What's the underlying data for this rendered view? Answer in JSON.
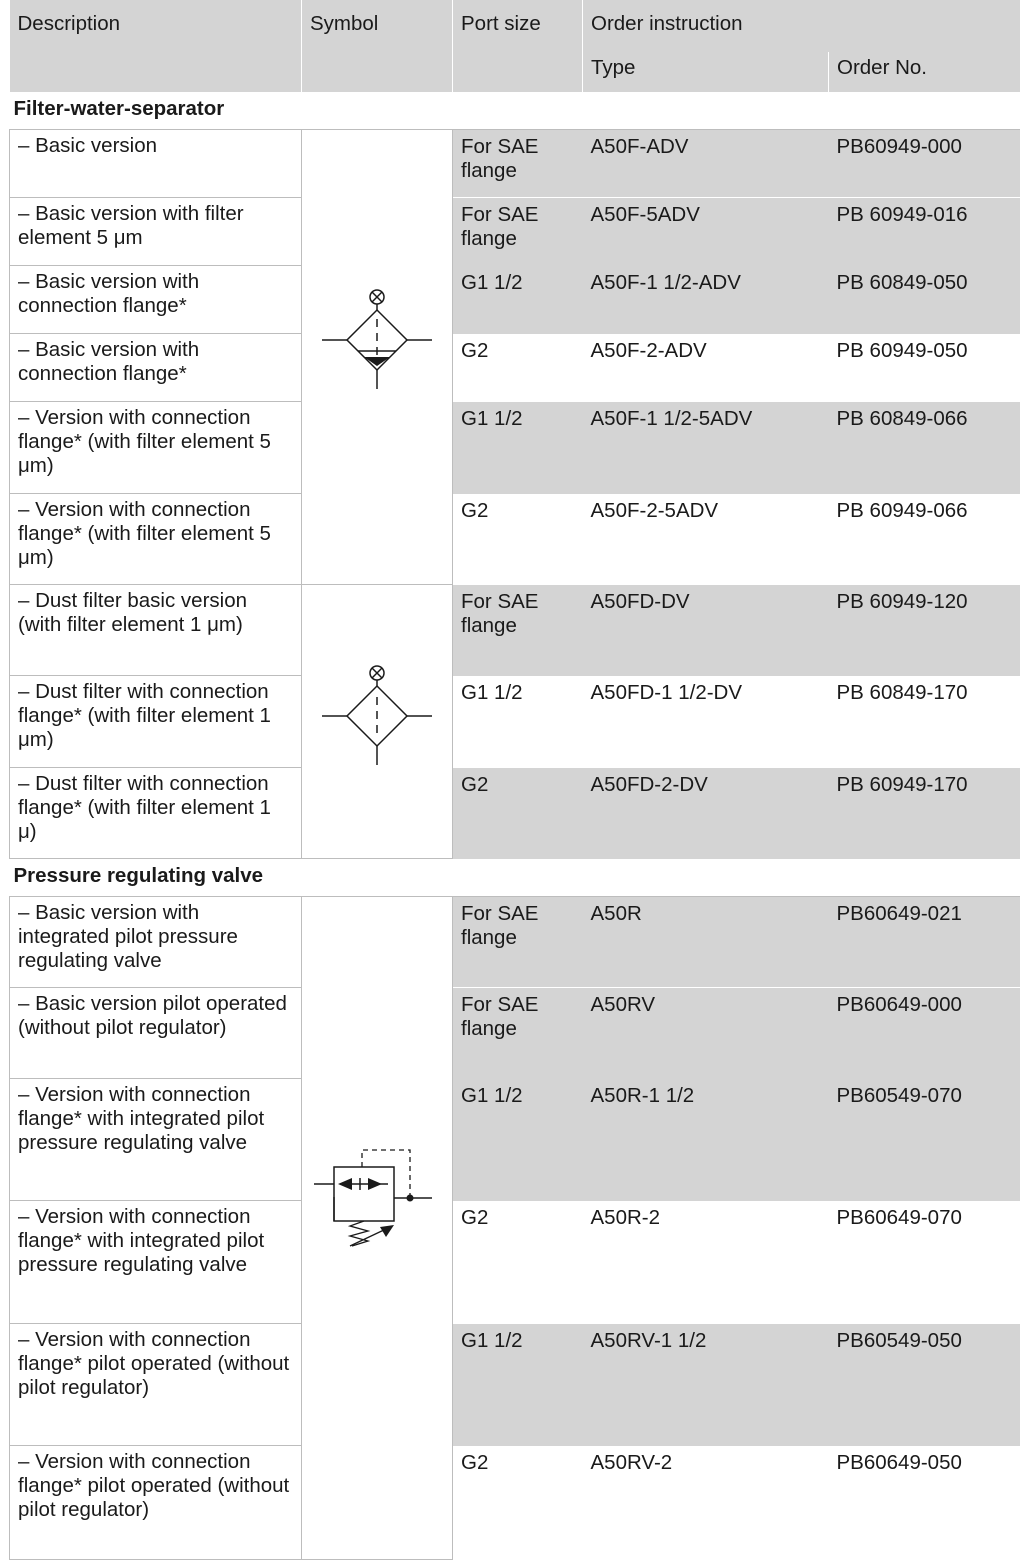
{
  "header": {
    "description": "Description",
    "symbol": "Symbol",
    "port_size": "Port size",
    "order_instruction": "Order instruction",
    "type": "Type",
    "order_no": "Order No."
  },
  "sections": [
    {
      "title": "Filter-water-separator",
      "groups": [
        {
          "symbol": "filter-water-separator-symbol",
          "rows": [
            {
              "description": "– Basic version",
              "port": "For SAE flange",
              "type": "A50F-ADV",
              "order_no": "PB60949-000"
            },
            {
              "description": "– Basic version with filter element 5 μm",
              "port": "For SAE flange",
              "type": "A50F-5ADV",
              "order_no": "PB 60949-016"
            },
            {
              "description": "– Basic version with connection flange*",
              "port": "G1 1/2",
              "type": "A50F-1 1/2-ADV",
              "order_no": "PB 60849-050"
            },
            {
              "description": "– Basic version with connection flange*",
              "port": "G2",
              "type": "A50F-2-ADV",
              "order_no": "PB 60949-050"
            },
            {
              "description": "– Version with connection flange* (with filter element 5 μm)",
              "port": "G1 1/2",
              "type": "A50F-1 1/2-5ADV",
              "order_no": "PB 60849-066"
            },
            {
              "description": "– Version with connection flange* (with filter element 5 μm)",
              "port": "G2",
              "type": "A50F-2-5ADV",
              "order_no": "PB 60949-066"
            }
          ]
        },
        {
          "symbol": "dust-filter-symbol",
          "rows": [
            {
              "description": "– Dust filter basic version (with filter element 1 μm)",
              "port": "For SAE flange",
              "type": "A50FD-DV",
              "order_no": "PB 60949-120"
            },
            {
              "description": "– Dust filter with connection flange* (with filter element 1 μm)",
              "port": "G1 1/2",
              "type": "A50FD-1 1/2-DV",
              "order_no": "PB 60849-170"
            },
            {
              "description": "– Dust filter with connection flange* (with filter element 1 μ)",
              "port": "G2",
              "type": "A50FD-2-DV",
              "order_no": "PB 60949-170"
            }
          ]
        }
      ]
    },
    {
      "title": "Pressure regulating valve",
      "groups": [
        {
          "symbol": "pressure-regulating-valve-symbol",
          "rows": [
            {
              "description": "– Basic version with integrated pilot pressure regulating valve",
              "port": "For SAE flange",
              "type": "A50R",
              "order_no": "PB60649-021"
            },
            {
              "description": "– Basic version pilot operated (without pilot regulator)",
              "port": "For SAE flange",
              "type": "A50RV",
              "order_no": "PB60649-000"
            },
            {
              "description": "– Version with connection flange* with integrated pilot pressure regulating valve",
              "port": "G1 1/2",
              "type": "A50R-1 1/2",
              "order_no": "PB60549-070"
            },
            {
              "description": "– Version with connection flange* with integrated pilot pressure regulating valve",
              "port": "G2",
              "type": "A50R-2",
              "order_no": "PB60649-070"
            },
            {
              "description": "– Version with connection flange* pilot operated (without pilot regulator)",
              "port": "G1 1/2",
              "type": "A50RV-1 1/2",
              "order_no": "PB60549-050"
            },
            {
              "description": "– Version with connection flange* pilot operated (without pilot regulator)",
              "port": "G2",
              "type": "A50RV-2",
              "order_no": "PB60649-050"
            }
          ]
        }
      ]
    }
  ]
}
